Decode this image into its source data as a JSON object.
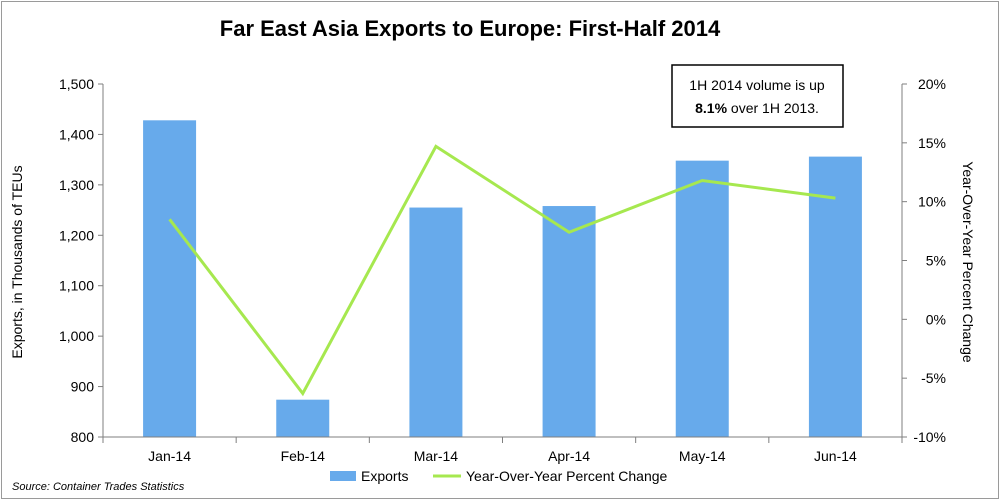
{
  "chart_data": {
    "type": "bar+line",
    "title": "Far East Asia Exports to Europe: First-Half 2014",
    "categories": [
      "Jan-14",
      "Feb-14",
      "Mar-14",
      "Apr-14",
      "May-14",
      "Jun-14"
    ],
    "series": [
      {
        "name": "Exports",
        "type": "bar",
        "axis": "left",
        "color": "#67aaeb",
        "values": [
          1428,
          874,
          1255,
          1258,
          1348,
          1356
        ]
      },
      {
        "name": "Year-Over-Year Percent Change",
        "type": "line",
        "axis": "right",
        "color": "#a6e84f",
        "values": [
          8.5,
          -6.3,
          14.7,
          7.4,
          11.8,
          10.3
        ]
      }
    ],
    "ylabel": "Exports, in Thousands of TEUs",
    "ylim": [
      800,
      1500
    ],
    "yticks": [
      "800",
      "900",
      "1,000",
      "1,100",
      "1,200",
      "1,300",
      "1,400",
      "1,500"
    ],
    "y2label": "Year-Over-Year Percent Change",
    "y2lim": [
      -10,
      20
    ],
    "y2ticks": [
      "-10%",
      "-5%",
      "0%",
      "5%",
      "10%",
      "15%",
      "20%"
    ],
    "annotation": {
      "line1": "1H 2014 volume is up",
      "bold": "8.1%",
      "rest": " over 1H 2013."
    },
    "legend": [
      "Exports",
      "Year-Over-Year Percent Change"
    ],
    "source": "Source: Container Trades Statistics"
  }
}
